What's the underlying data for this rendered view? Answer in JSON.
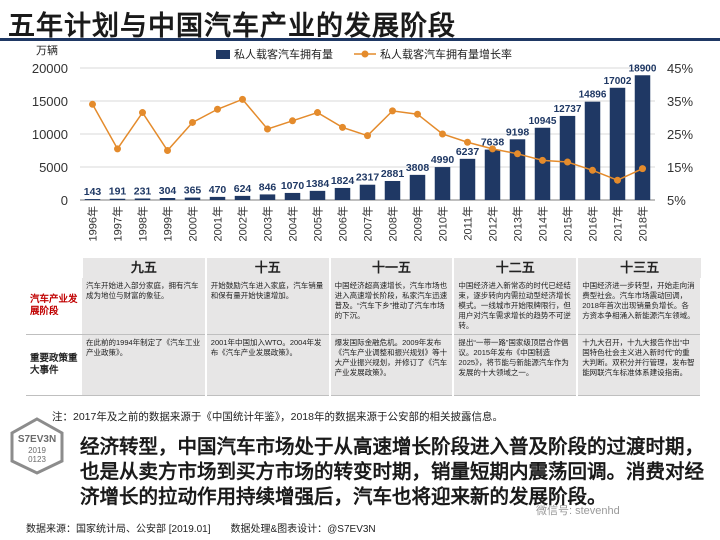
{
  "page": {
    "title": "五年计划与中国汽车产业的发展阶段",
    "note": "注：2017年及之前的数据来源于《中国统计年鉴》，2018年的数据来源于公安部的相关披露信息。",
    "summary": "经济转型，中国汽车市场处于从高速增长阶段进入普及阶段的过渡时期，也是从卖方市场到买方市场的转变时期，销量短期内震荡回调。消费对经济增长的拉动作用持续增强后，汽车也将迎来新的发展阶段。",
    "footer": "数据来源：国家统计局、公安部 [2019.01]　　数据处理&图表设计：@S7EV3N",
    "watermark": "微信号: stevenhd",
    "stamp_lines": [
      "S7EV3N",
      "2019",
      "0123"
    ]
  },
  "chart_data": {
    "type": "bar+line",
    "y_unit": "万辆",
    "categories": [
      "1996年",
      "1997年",
      "1998年",
      "1999年",
      "2000年",
      "2001年",
      "2002年",
      "2003年",
      "2004年",
      "2005年",
      "2006年",
      "2007年",
      "2008年",
      "2009年",
      "2010年",
      "2011年",
      "2012年",
      "2013年",
      "2014年",
      "2015年",
      "2016年",
      "2017年",
      "2018年"
    ],
    "series": [
      {
        "name": "私人载客汽车拥有量",
        "type": "bar",
        "axis": "left",
        "color": "#1f3864",
        "values": [
          143,
          191,
          231,
          304,
          365,
          470,
          624,
          846,
          1070,
          1384,
          1824,
          2317,
          2881,
          3808,
          4990,
          6237,
          7638,
          9198,
          10945,
          12737,
          14896,
          17002,
          18900
        ]
      },
      {
        "name": "私人载客汽车拥有量增长率",
        "type": "line",
        "axis": "right",
        "color": "#e48b2c",
        "values": [
          34.0,
          20.5,
          31.5,
          20.0,
          28.5,
          32.5,
          35.5,
          26.5,
          29.0,
          31.5,
          27.0,
          24.5,
          32.0,
          31.0,
          25.0,
          22.5,
          20.5,
          19.0,
          17.0,
          16.5,
          14.0,
          11.0,
          14.5
        ]
      }
    ],
    "y_left": {
      "min": 0,
      "max": 20000,
      "ticks": [
        "0",
        "5000",
        "10000",
        "15000",
        "20000"
      ]
    },
    "y_right": {
      "min": 5,
      "max": 45,
      "ticks": [
        "5%",
        "15%",
        "25%",
        "35%",
        "45%"
      ]
    }
  },
  "table": {
    "headers": [
      "九五",
      "十五",
      "十一五",
      "十二五",
      "十三五"
    ],
    "rows": [
      {
        "label": "汽车产业发展阶段",
        "cells": [
          "汽车开始进入部分家庭，拥有汽车成为地位与财富的象征。",
          "开始鼓励汽车进入家庭，汽车销量和保有量开始快速增加。",
          "中国经济超高速增长，汽车市场也进入高速增长阶段，私家汽车迅速普及。“汽车下乡”推动了汽车市场的下沉。",
          "中国经济进入新常态的时代已经结束，逐步转向内需拉动型经济增长模式。一线城市开始限牌限行，但用户对汽车需求增长的趋势不可逆转。",
          "中国经济进一步转型，开始走向消费型社会。汽车市场震动回调，2018年首次出现销量负增长。各方资本争相涌入新能源汽车领域。"
        ]
      },
      {
        "label": "重要政策重大事件",
        "cells": [
          "在此前的1994年制定了《汽车工业产业政策》。",
          "2001年中国加入WTO。2004年发布《汽车产业发展政策》。",
          "爆发国际金融危机。2009年发布《汽车产业调整和振兴规划》等十大产业振兴规划，并修订了《汽车产业发展政策》。",
          "提出“一带一路”国家级顶层合作倡议。2015年发布《中国制造2025》，将节能与新能源汽车作为发展的十大领域之一。",
          "十九大召开，十九大报告作出“中国特色社会主义进入新时代”的重大判断。双积分并行管理，发布智能网联汽车标准体系建设指南。"
        ]
      }
    ]
  }
}
